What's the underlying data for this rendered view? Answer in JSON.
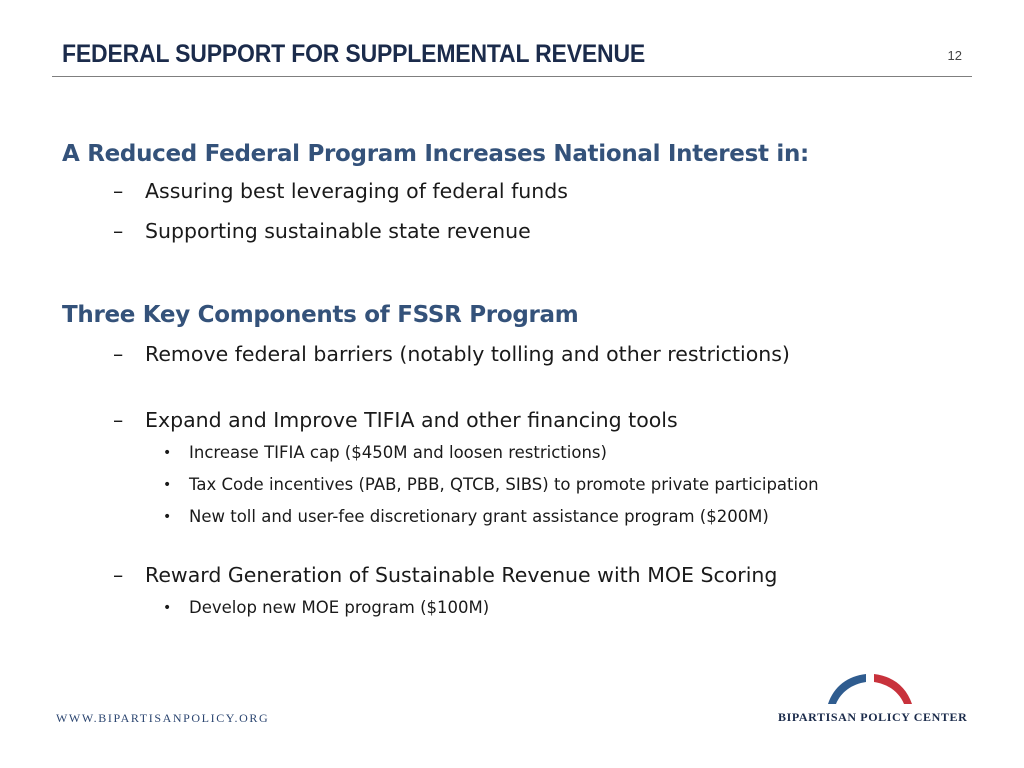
{
  "slide": {
    "title": "FEDERAL SUPPORT FOR SUPPLEMENTAL REVENUE",
    "page_number": "12"
  },
  "section1": {
    "heading": "A Reduced Federal Program Increases National Interest in:",
    "items": [
      {
        "marker": "–",
        "text": "Assuring best leveraging of federal funds"
      },
      {
        "marker": "–",
        "text": "Supporting sustainable state revenue"
      }
    ]
  },
  "section2": {
    "heading": "Three Key Components of FSSR Program",
    "component1": {
      "marker": "–",
      "text": "Remove federal barriers (notably tolling and other restrictions)"
    },
    "component2": {
      "marker": "–",
      "text": "Expand and Improve TIFIA and other financing tools",
      "subitems": [
        {
          "marker": "•",
          "text": "Increase TIFIA cap ($450M and loosen restrictions)"
        },
        {
          "marker": "•",
          "text": "Tax Code incentives (PAB, PBB, QTCB, SIBS) to promote private participation"
        },
        {
          "marker": "•",
          "text": "New toll and user-fee discretionary grant assistance program ($200M)"
        }
      ]
    },
    "component3": {
      "marker": "–",
      "text": "Reward Generation of Sustainable Revenue with MOE Scoring",
      "subitems": [
        {
          "marker": "•",
          "text": "Develop new MOE program ($100M)"
        }
      ]
    }
  },
  "footer": {
    "url": "WWW.BIPARTISANPOLICY.ORG",
    "logo_text": "BIPARTISAN POLICY CENTER",
    "logo_icon": "arch-logo-icon"
  },
  "colors": {
    "title": "#1b2b4b",
    "heading": "#34527a",
    "logo_blue": "#2f5c8f",
    "logo_red": "#c8323c"
  }
}
